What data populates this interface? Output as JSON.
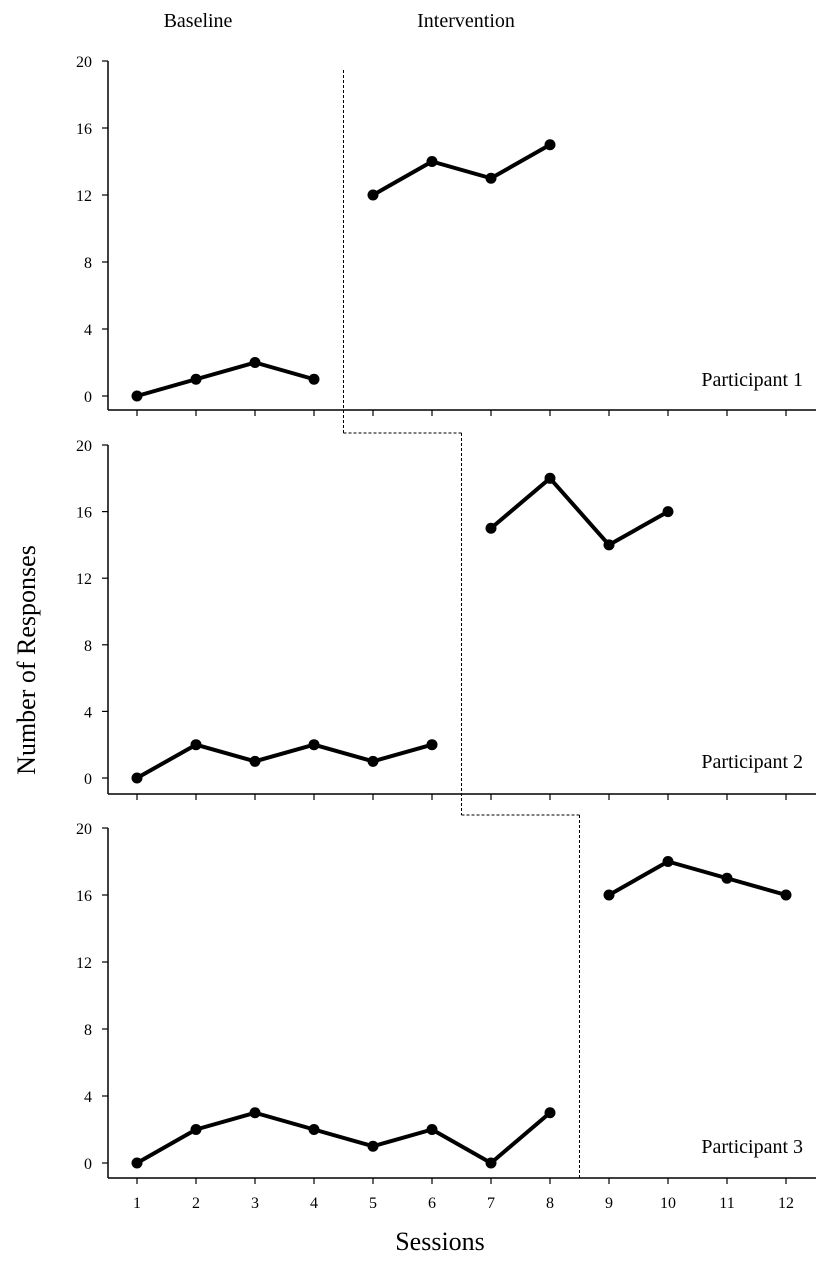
{
  "chart_data": {
    "type": "line",
    "title": "",
    "xlabel": "Sessions",
    "ylabel": "Number of Responses",
    "x_ticks": [
      1,
      2,
      3,
      4,
      5,
      6,
      7,
      8,
      9,
      10,
      11,
      12
    ],
    "x_range": [
      0.5,
      12.5
    ],
    "y_ticks": [
      0,
      4,
      8,
      12,
      16,
      20
    ],
    "ylim": [
      0,
      20
    ],
    "phase_labels": {
      "baseline": "Baseline",
      "intervention": "Intervention"
    },
    "panels": [
      {
        "label": "Participant 1",
        "phase_change_after": 4.5,
        "baseline": {
          "x": [
            1,
            2,
            3,
            4
          ],
          "y": [
            0,
            1,
            2,
            1
          ]
        },
        "intervention": {
          "x": [
            5,
            6,
            7,
            8
          ],
          "y": [
            12,
            14,
            13,
            15
          ]
        }
      },
      {
        "label": "Participant 2",
        "phase_change_after": 6.5,
        "baseline": {
          "x": [
            1,
            2,
            3,
            4,
            5,
            6
          ],
          "y": [
            0,
            2,
            1,
            2,
            1,
            2
          ]
        },
        "intervention": {
          "x": [
            7,
            8,
            9,
            10
          ],
          "y": [
            15,
            18,
            14,
            16
          ]
        }
      },
      {
        "label": "Participant 3",
        "phase_change_after": 8.5,
        "baseline": {
          "x": [
            1,
            2,
            3,
            4,
            5,
            6,
            7,
            8
          ],
          "y": [
            0,
            2,
            3,
            2,
            1,
            2,
            0,
            3
          ]
        },
        "intervention": {
          "x": [
            9,
            10,
            11,
            12
          ],
          "y": [
            16,
            18,
            17,
            16
          ]
        }
      }
    ]
  }
}
